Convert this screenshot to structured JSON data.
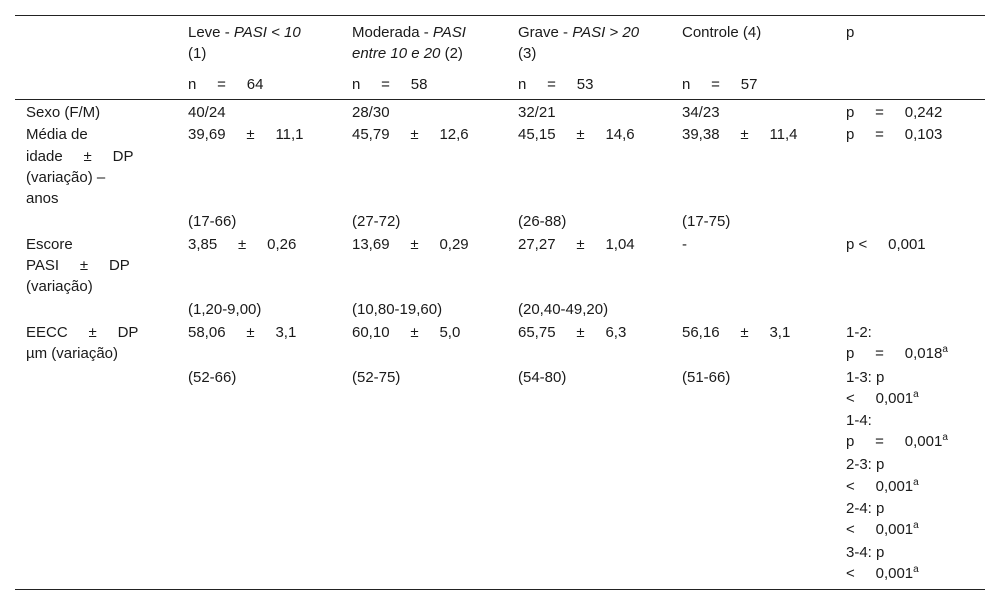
{
  "header": {
    "col1": {
      "name": "Leve - ",
      "italic": "PASI < 10",
      "line2": "(1)",
      "n": "n     =     64"
    },
    "col2": {
      "name": "Moderada - ",
      "italic": "PASI",
      "line2_italic": "entre 10 e 20",
      "line2_rest": " (2)",
      "n": "n     =     58"
    },
    "col3": {
      "name": "Grave - ",
      "italic": "PASI > 20",
      "line2": "(3)",
      "n": "n     =     53"
    },
    "col4": {
      "name": "Controle (4)",
      "n": "n     =     57"
    },
    "col5": {
      "name": "p"
    }
  },
  "rows": {
    "sexo": {
      "label": "Sexo (F/M)",
      "c1": "40/24",
      "c2": "28/30",
      "c3": "32/21",
      "c4": "34/23",
      "p": "p     =     0,242"
    },
    "idade": {
      "label": [
        "Média de",
        "idade     ±     DP",
        "(variação) –",
        "anos"
      ],
      "c1": "39,69     ±     11,1",
      "c2": "45,79     ±     12,6",
      "c3": "45,15     ±     14,6",
      "c4": "39,38     ±     11,4",
      "p": "p     =     0,103",
      "r1": "(17-66)",
      "r2": "(27-72)",
      "r3": "(26-88)",
      "r4": "(17-75)"
    },
    "pasi": {
      "label": [
        "Escore",
        "PASI     ±     DP",
        "(variação)"
      ],
      "c1": "3,85     ±     0,26",
      "c2": "13,69     ±     0,29",
      "c3": "27,27     ±     1,04",
      "c4": "-",
      "p": "p <     0,001",
      "r1": "(1,20-9,00)",
      "r2": "(10,80-19,60)",
      "r3": "(20,40-49,20)"
    },
    "eecc": {
      "label": [
        "EECC     ±     DP",
        "µm (variação)"
      ],
      "c1": "58,06     ±     3,1",
      "c2": "60,10     ±     5,0",
      "c3": "65,75     ±     6,3",
      "c4": "56,16     ±     3,1",
      "r1": "(52-66)",
      "r2": "(52-75)",
      "r3": "(54-80)",
      "r4": "(51-66)",
      "p_lines": [
        {
          "text": "1-2:",
          "sup": ""
        },
        {
          "text": "p     =     0,018",
          "sup": "a"
        },
        {
          "text": "1-3: p",
          "sup": ""
        },
        {
          "text": "<     0,001",
          "sup": "a"
        },
        {
          "text": "1-4:",
          "sup": ""
        },
        {
          "text": "p     =     0,001",
          "sup": "a"
        },
        {
          "text": "2-3: p",
          "sup": ""
        },
        {
          "text": "<     0,001",
          "sup": "a"
        },
        {
          "text": "2-4: p",
          "sup": ""
        },
        {
          "text": "<     0,001",
          "sup": "a"
        },
        {
          "text": "3-4: p",
          "sup": ""
        },
        {
          "text": "<     0,001",
          "sup": "a"
        }
      ]
    }
  }
}
